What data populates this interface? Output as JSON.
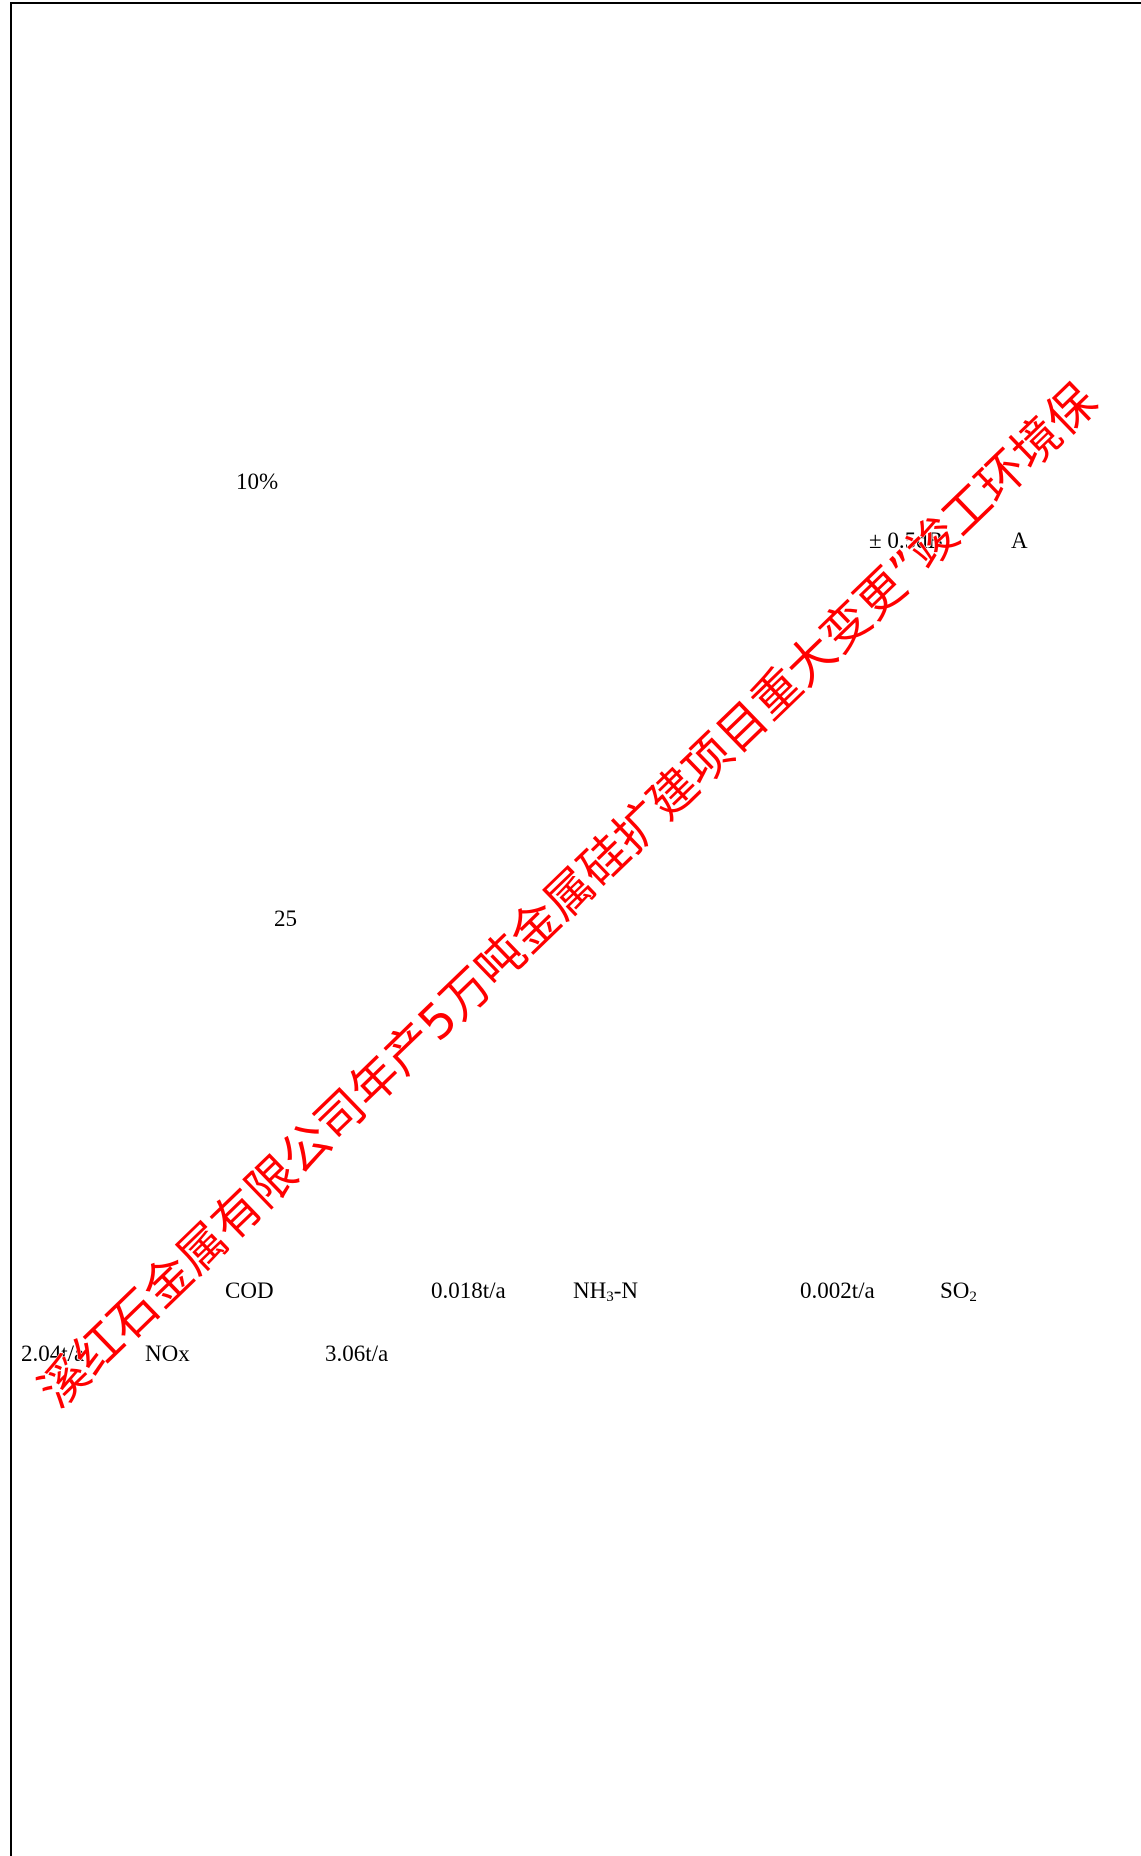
{
  "page": {
    "texts": [
      {
        "text": "10%"
      },
      {
        "text": "± 0.5dB"
      },
      {
        "text": "A"
      },
      {
        "text": "25"
      },
      {
        "text": "COD"
      },
      {
        "text": "0.018t/a"
      },
      {
        "text": "NH",
        "sub": "3",
        "tail": "-N"
      },
      {
        "text": "0.002t/a"
      },
      {
        "text": "SO",
        "sub": "2"
      },
      {
        "text": "2.04t/a"
      },
      {
        "text": "NOx"
      },
      {
        "text": "3.06t/a"
      }
    ],
    "watermark": "溪红石金属有限公司年产5万吨金属硅扩建项目重大变更”竣工环境保"
  }
}
